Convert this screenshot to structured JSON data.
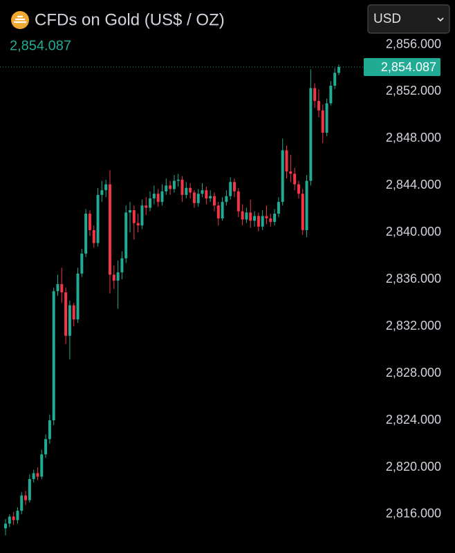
{
  "chart_data": {
    "type": "candlestick",
    "title": "CFDs on Gold (US$ / OZ)",
    "subtitle": "2,854.087",
    "currency": "USD",
    "up_color": "#22ab94",
    "down_color": "#f23645",
    "ylim": [
      2812.7,
      2859.8
    ],
    "yticks": [
      {
        "value": 2816,
        "label": "2,816.000"
      },
      {
        "value": 2820,
        "label": "2,820.000"
      },
      {
        "value": 2824,
        "label": "2,824.000"
      },
      {
        "value": 2828,
        "label": "2,828.000"
      },
      {
        "value": 2832,
        "label": "2,832.000"
      },
      {
        "value": 2836,
        "label": "2,836.000"
      },
      {
        "value": 2840,
        "label": "2,840.000"
      },
      {
        "value": 2844,
        "label": "2,844.000"
      },
      {
        "value": 2848,
        "label": "2,848.000"
      },
      {
        "value": 2852,
        "label": "2,852.000"
      },
      {
        "value": 2856,
        "label": "2,856.000"
      }
    ],
    "last_price": {
      "value": 2854.087,
      "label": "2,854.087"
    },
    "open": [
      2814.8,
      2815.2,
      2815.8,
      2815.5,
      2816.3,
      2817.6,
      2817.2,
      2819.0,
      2819.5,
      2819.2,
      2821.1,
      2822.4,
      2824.0,
      2835.0,
      2835.6,
      2834.9,
      2831.2,
      2833.8,
      2832.6,
      2836.5,
      2838.2,
      2841.6,
      2840.2,
      2839.1,
      2843.2,
      2843.6,
      2844.1,
      2836.4,
      2835.9,
      2836.6,
      2837.8,
      2841.7,
      2841.9,
      2840.8,
      2840.6,
      2842.3,
      2842.1,
      2842.9,
      2843.3,
      2842.6,
      2843.5,
      2844.0,
      2843.7,
      2844.4,
      2844.5,
      2843.2,
      2843.8,
      2843.4,
      2842.5,
      2843.3,
      2843.6,
      2842.9,
      2843.1,
      2842.3,
      2841.2,
      2842.6,
      2843.1,
      2844.3,
      2843.5,
      2841.8,
      2841.1,
      2841.7,
      2841.0,
      2841.4,
      2840.5,
      2841.4,
      2841.2,
      2840.9,
      2841.6,
      2842.6,
      2847.0,
      2845.2,
      2845.0,
      2844.1,
      2843.3,
      2840.2,
      2844.4,
      2852.3,
      2851.2,
      2850.4,
      2848.5,
      2851.0,
      2852.5,
      2853.6
    ],
    "high": [
      2815.6,
      2816.0,
      2816.2,
      2816.6,
      2817.9,
      2818.0,
      2819.4,
      2819.8,
      2820.0,
      2821.5,
      2822.8,
      2824.5,
      2835.3,
      2836.4,
      2837.0,
      2835.3,
      2834.2,
      2834.0,
      2837.0,
      2838.6,
      2842.0,
      2841.9,
      2840.6,
      2843.8,
      2844.4,
      2844.5,
      2845.3,
      2837.2,
      2837.6,
      2838.4,
      2842.3,
      2842.6,
      2842.3,
      2841.6,
      2842.8,
      2843.0,
      2843.5,
      2844.0,
      2843.7,
      2844.1,
      2844.6,
      2844.4,
      2844.9,
      2845.0,
      2844.8,
      2844.3,
      2844.2,
      2843.6,
      2843.7,
      2844.2,
      2843.9,
      2843.6,
      2843.4,
      2842.6,
      2843.0,
      2843.6,
      2844.7,
      2844.6,
      2843.8,
      2842.4,
      2842.1,
      2842.8,
      2841.8,
      2841.7,
      2841.9,
      2842.3,
      2841.6,
      2842.0,
      2843.0,
      2848.0,
      2847.4,
      2846.6,
      2845.5,
      2844.4,
      2843.7,
      2844.9,
      2853.9,
      2852.7,
      2852.2,
      2850.9,
      2851.4,
      2852.9,
      2854.0,
      2854.3
    ],
    "low": [
      2814.2,
      2814.9,
      2815.1,
      2815.2,
      2816.0,
      2816.8,
      2817.0,
      2818.7,
      2818.9,
      2819.0,
      2820.8,
      2822.0,
      2823.6,
      2834.6,
      2834.0,
      2830.5,
      2829.2,
      2832.0,
      2832.3,
      2836.2,
      2837.9,
      2839.7,
      2838.7,
      2838.8,
      2842.6,
      2843.0,
      2834.8,
      2835.2,
      2833.5,
      2836.0,
      2837.4,
      2840.0,
      2839.4,
      2840.0,
      2840.3,
      2841.5,
      2841.8,
      2842.4,
      2842.2,
      2842.3,
      2843.2,
      2843.2,
      2843.4,
      2843.9,
      2842.6,
      2842.9,
      2842.9,
      2842.1,
      2842.2,
      2843.0,
      2842.4,
      2842.6,
      2841.8,
      2840.6,
      2841.0,
      2842.3,
      2842.8,
      2843.0,
      2841.3,
      2840.6,
      2840.8,
      2840.4,
      2840.5,
      2840.1,
      2840.2,
      2840.7,
      2840.5,
      2840.6,
      2841.3,
      2842.3,
      2844.6,
      2844.3,
      2843.6,
      2842.9,
      2839.8,
      2839.6,
      2844.0,
      2850.6,
      2849.8,
      2847.6,
      2848.2,
      2850.8,
      2852.2,
      2853.4
    ],
    "close": [
      2815.2,
      2815.8,
      2815.5,
      2816.3,
      2817.6,
      2817.2,
      2819.0,
      2819.5,
      2819.2,
      2821.1,
      2822.4,
      2824.0,
      2835.0,
      2835.6,
      2834.9,
      2831.2,
      2833.8,
      2832.6,
      2836.5,
      2838.2,
      2841.6,
      2840.2,
      2839.1,
      2843.2,
      2843.6,
      2844.1,
      2836.4,
      2835.9,
      2836.6,
      2837.8,
      2841.7,
      2841.9,
      2840.8,
      2840.6,
      2842.3,
      2842.1,
      2842.9,
      2843.3,
      2842.6,
      2843.5,
      2844.0,
      2843.7,
      2844.4,
      2844.5,
      2843.2,
      2843.8,
      2843.4,
      2842.5,
      2843.3,
      2843.6,
      2842.9,
      2843.1,
      2842.3,
      2841.2,
      2842.6,
      2843.1,
      2844.3,
      2843.5,
      2841.8,
      2841.1,
      2841.7,
      2841.0,
      2841.4,
      2840.5,
      2841.4,
      2841.2,
      2840.9,
      2841.6,
      2842.6,
      2847.0,
      2845.2,
      2845.0,
      2844.1,
      2843.3,
      2840.2,
      2844.4,
      2852.3,
      2851.2,
      2850.4,
      2848.5,
      2851.0,
      2852.5,
      2853.6,
      2854.087
    ]
  }
}
